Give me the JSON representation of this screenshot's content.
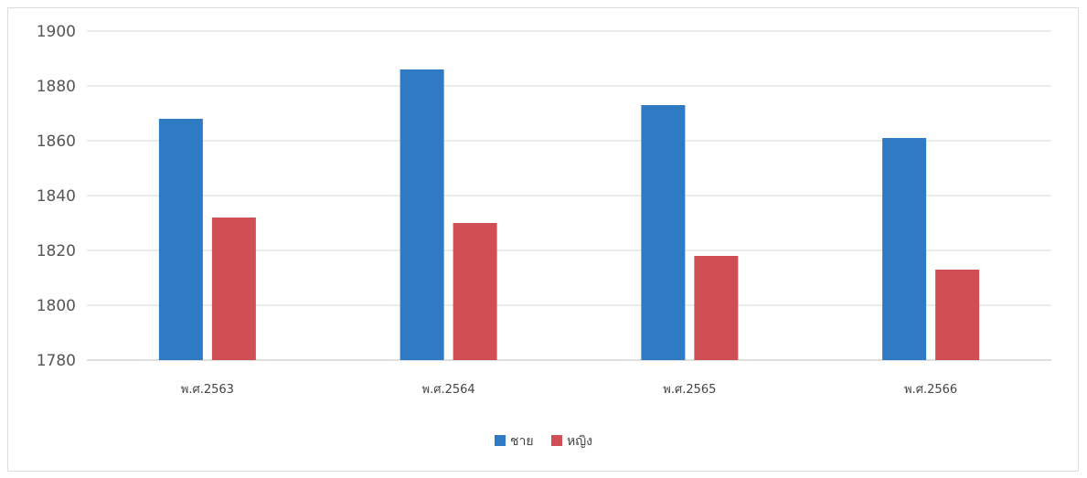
{
  "chart_data": {
    "type": "bar",
    "categories": [
      "พ.ศ.2563",
      "พ.ศ.2564",
      "พ.ศ.2565",
      "พ.ศ.2566"
    ],
    "series": [
      {
        "name": "ชาย",
        "color": "#2e7bc4",
        "values": [
          1868,
          1886,
          1873,
          1861
        ]
      },
      {
        "name": "หญิง",
        "color": "#cf4f55",
        "values": [
          1832,
          1830,
          1818,
          1813
        ]
      }
    ],
    "ylim": [
      1780,
      1900
    ],
    "yticks": [
      1780,
      1800,
      1820,
      1840,
      1860,
      1880,
      1900
    ],
    "grid": true,
    "legend": "bottom"
  }
}
